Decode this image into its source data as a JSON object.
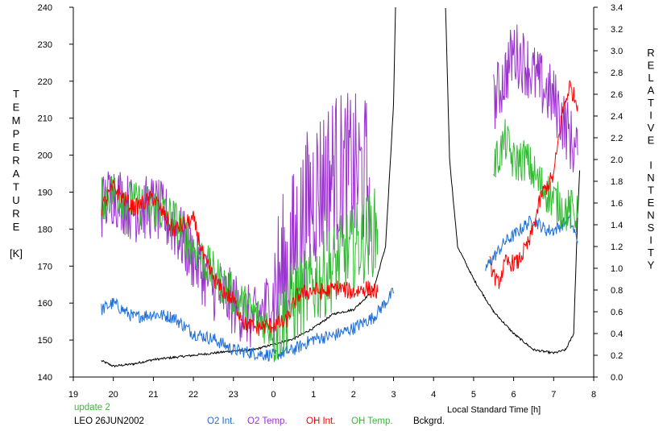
{
  "chart_data": {
    "type": "line",
    "xlabel": "Local Standard Time [h]",
    "ylabel_left": [
      "T",
      "E",
      "M",
      "P",
      "E",
      "R",
      "A",
      "T",
      "U",
      "R",
      "E",
      "",
      "[K]"
    ],
    "ylabel_right": [
      "R",
      "E",
      "L",
      "A",
      "T",
      "I",
      "V",
      "E",
      "",
      "I",
      "N",
      "T",
      "E",
      "N",
      "S",
      "I",
      "T",
      "Y"
    ],
    "x_ticks": [
      {
        "t": 19,
        "label": "19"
      },
      {
        "t": 20,
        "label": "20"
      },
      {
        "t": 21,
        "label": "21"
      },
      {
        "t": 22,
        "label": "22"
      },
      {
        "t": 23,
        "label": "23"
      },
      {
        "t": 24,
        "label": "0"
      },
      {
        "t": 25,
        "label": "1"
      },
      {
        "t": 26,
        "label": "2"
      },
      {
        "t": 27,
        "label": "3"
      },
      {
        "t": 28,
        "label": "4"
      },
      {
        "t": 29,
        "label": "5"
      },
      {
        "t": 30,
        "label": "6"
      },
      {
        "t": 31,
        "label": "7"
      },
      {
        "t": 32,
        "label": "8"
      }
    ],
    "xlim": [
      19,
      32
    ],
    "y_left_ticks": [
      "140",
      "150",
      "160",
      "170",
      "180",
      "190",
      "200",
      "210",
      "220",
      "230",
      "240"
    ],
    "ylim_left": [
      140,
      240
    ],
    "y_right_ticks": [
      "0.0",
      "0.2",
      "0.4",
      "0.6",
      "0.8",
      "1.0",
      "1.2",
      "1.4",
      "1.6",
      "1.8",
      "2.0",
      "2.2",
      "2.4",
      "2.6",
      "2.8",
      "3.0",
      "3.2",
      "3.4"
    ],
    "ylim_right": [
      0.0,
      3.4
    ],
    "footer": {
      "update": "update 2",
      "site_date": "LEO 26JUN2002"
    },
    "series": [
      {
        "name": "O2 Temp.",
        "axis": "left",
        "color": "#9933cc",
        "noise": 0.6,
        "x": [
          19.7,
          20.0,
          20.5,
          21.0,
          21.5,
          22.0,
          22.5,
          23.0,
          23.5,
          24.0,
          24.5,
          25.0,
          25.5,
          26.0,
          26.4
        ],
        "y": [
          186,
          190,
          185,
          186,
          181,
          172,
          164,
          160,
          155,
          162,
          175,
          190,
          196,
          195,
          194
        ]
      },
      {
        "name": "O2 Temp.",
        "axis": "left",
        "color": "#9933cc",
        "noise": 0.6,
        "x": [
          29.5,
          29.8,
          30.0,
          30.3,
          30.6,
          31.0,
          31.3,
          31.5,
          31.6
        ],
        "y": [
          214,
          222,
          228,
          225,
          220,
          215,
          208,
          202,
          200
        ]
      },
      {
        "name": "OH Temp.",
        "axis": "left",
        "color": "#33bb33",
        "noise": 0.4,
        "x": [
          19.7,
          20.0,
          20.5,
          21.0,
          21.5,
          22.0,
          22.5,
          23.0,
          23.5,
          24.0,
          24.5,
          25.0,
          25.5,
          26.0,
          26.6
        ],
        "y": [
          188,
          190,
          187,
          186,
          183,
          175,
          168,
          162,
          157,
          153,
          160,
          165,
          170,
          175,
          180
        ]
      },
      {
        "name": "OH Temp.",
        "axis": "left",
        "color": "#33bb33",
        "noise": 0.4,
        "x": [
          29.5,
          29.8,
          30.0,
          30.3,
          30.6,
          31.0,
          31.3,
          31.5,
          31.6
        ],
        "y": [
          197,
          204,
          198,
          199,
          193,
          188,
          185,
          185,
          183
        ]
      },
      {
        "name": "OH Int.",
        "axis": "right",
        "color": "#ff0000",
        "noise": 0.08,
        "x": [
          19.7,
          20.0,
          20.5,
          21.0,
          21.5,
          22.0,
          22.3,
          22.6,
          23.0,
          23.3,
          23.6,
          24.0,
          24.3,
          24.6,
          25.0,
          25.3,
          25.6,
          26.0,
          26.3,
          26.6
        ],
        "y": [
          1.55,
          1.75,
          1.55,
          1.65,
          1.35,
          1.45,
          1.05,
          0.85,
          0.7,
          0.48,
          0.45,
          0.48,
          0.5,
          0.75,
          0.8,
          0.78,
          0.82,
          0.78,
          0.82,
          0.78
        ]
      },
      {
        "name": "OH Int.",
        "axis": "right",
        "color": "#ff0000",
        "noise": 0.08,
        "x": [
          29.4,
          29.6,
          29.8,
          30.1,
          30.4,
          30.7,
          31.0,
          31.2,
          31.4,
          31.6
        ],
        "y": [
          1.05,
          0.85,
          1.05,
          1.05,
          1.25,
          1.68,
          1.85,
          2.4,
          2.68,
          2.5
        ]
      },
      {
        "name": "O2 Int.",
        "axis": "right",
        "color": "#1f6fd9",
        "noise": 0.06,
        "x": [
          19.7,
          20.0,
          20.5,
          21.0,
          21.5,
          22.0,
          22.5,
          23.0,
          23.5,
          24.0,
          24.5,
          25.0,
          25.5,
          26.0,
          26.5,
          27.0
        ],
        "y": [
          0.62,
          0.68,
          0.55,
          0.58,
          0.55,
          0.4,
          0.35,
          0.25,
          0.22,
          0.2,
          0.25,
          0.35,
          0.38,
          0.45,
          0.55,
          0.78
        ]
      },
      {
        "name": "O2 Int.",
        "axis": "right",
        "color": "#1f6fd9",
        "noise": 0.06,
        "x": [
          29.3,
          29.5,
          29.8,
          30.0,
          30.3,
          30.5,
          30.8,
          31.0,
          31.2,
          31.4,
          31.6
        ],
        "y": [
          1.0,
          1.1,
          1.25,
          1.3,
          1.4,
          1.45,
          1.35,
          1.35,
          1.4,
          1.45,
          1.25
        ]
      },
      {
        "name": "Bckgrd.",
        "axis": "right",
        "color": "#000000",
        "noise": 0.01,
        "x": [
          19.7,
          20.0,
          20.5,
          21.0,
          21.5,
          22.0,
          22.5,
          23.0,
          23.5,
          24.0,
          24.5,
          25.0,
          25.5,
          26.0,
          26.5,
          26.8,
          27.0,
          27.05
        ],
        "y": [
          0.15,
          0.1,
          0.12,
          0.16,
          0.18,
          0.2,
          0.22,
          0.24,
          0.25,
          0.3,
          0.35,
          0.45,
          0.58,
          0.62,
          0.8,
          1.2,
          2.5,
          3.4
        ]
      },
      {
        "name": "Bckgrd.",
        "axis": "right",
        "color": "#000000",
        "noise": 0.01,
        "x": [
          28.3,
          28.4,
          28.6,
          29.0,
          29.5,
          30.0,
          30.5,
          31.0,
          31.3,
          31.5,
          31.6,
          31.65
        ],
        "y": [
          3.4,
          2.0,
          1.2,
          0.9,
          0.6,
          0.4,
          0.25,
          0.22,
          0.25,
          0.4,
          1.5,
          1.9
        ]
      }
    ],
    "legend": [
      {
        "label": "O2 Int.",
        "color": "#1f6fd9"
      },
      {
        "label": "O2 Temp.",
        "color": "#9933cc"
      },
      {
        "label": "OH Int.",
        "color": "#ff0000"
      },
      {
        "label": "OH Temp.",
        "color": "#33bb33"
      },
      {
        "label": "Bckgrd.",
        "color": "#000000"
      }
    ]
  }
}
